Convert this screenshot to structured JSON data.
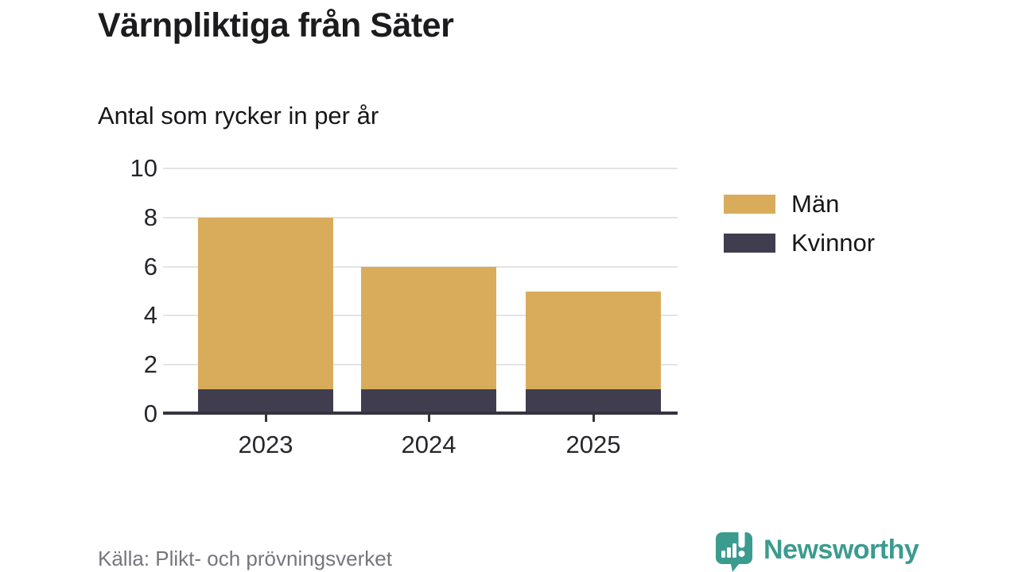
{
  "header": {
    "title": "Värnpliktiga från Säter",
    "subtitle": "Antal som rycker in per år"
  },
  "chart_data": {
    "type": "bar",
    "stacked": true,
    "categories": [
      "2023",
      "2024",
      "2025"
    ],
    "series": [
      {
        "name": "Män",
        "color": "#D9AC5C",
        "values": [
          7,
          5,
          4
        ]
      },
      {
        "name": "Kvinnor",
        "color": "#3F3D4E",
        "values": [
          1,
          1,
          1
        ]
      }
    ],
    "totals": [
      8,
      6,
      5
    ],
    "title": "Värnpliktiga från Säter",
    "subtitle": "Antal som rycker in per år",
    "xlabel": "",
    "ylabel": "",
    "ylim": [
      0,
      10
    ],
    "yticks": [
      0,
      2,
      4,
      6,
      8,
      10
    ],
    "grid": "horizontal",
    "legend_position": "right",
    "stack_order_bottom_to_top": [
      "Kvinnor",
      "Män"
    ],
    "colors": {
      "grid": "#E4E4E6",
      "axis": "#35343E",
      "tick_label": "#26262B"
    }
  },
  "footer": {
    "source": "Källa: Plikt- och prövningsverket",
    "brand": "Newsworthy",
    "brand_color": "#3B9B8F",
    "logo_icon": "bar-chart-speech-bubble-icon"
  }
}
